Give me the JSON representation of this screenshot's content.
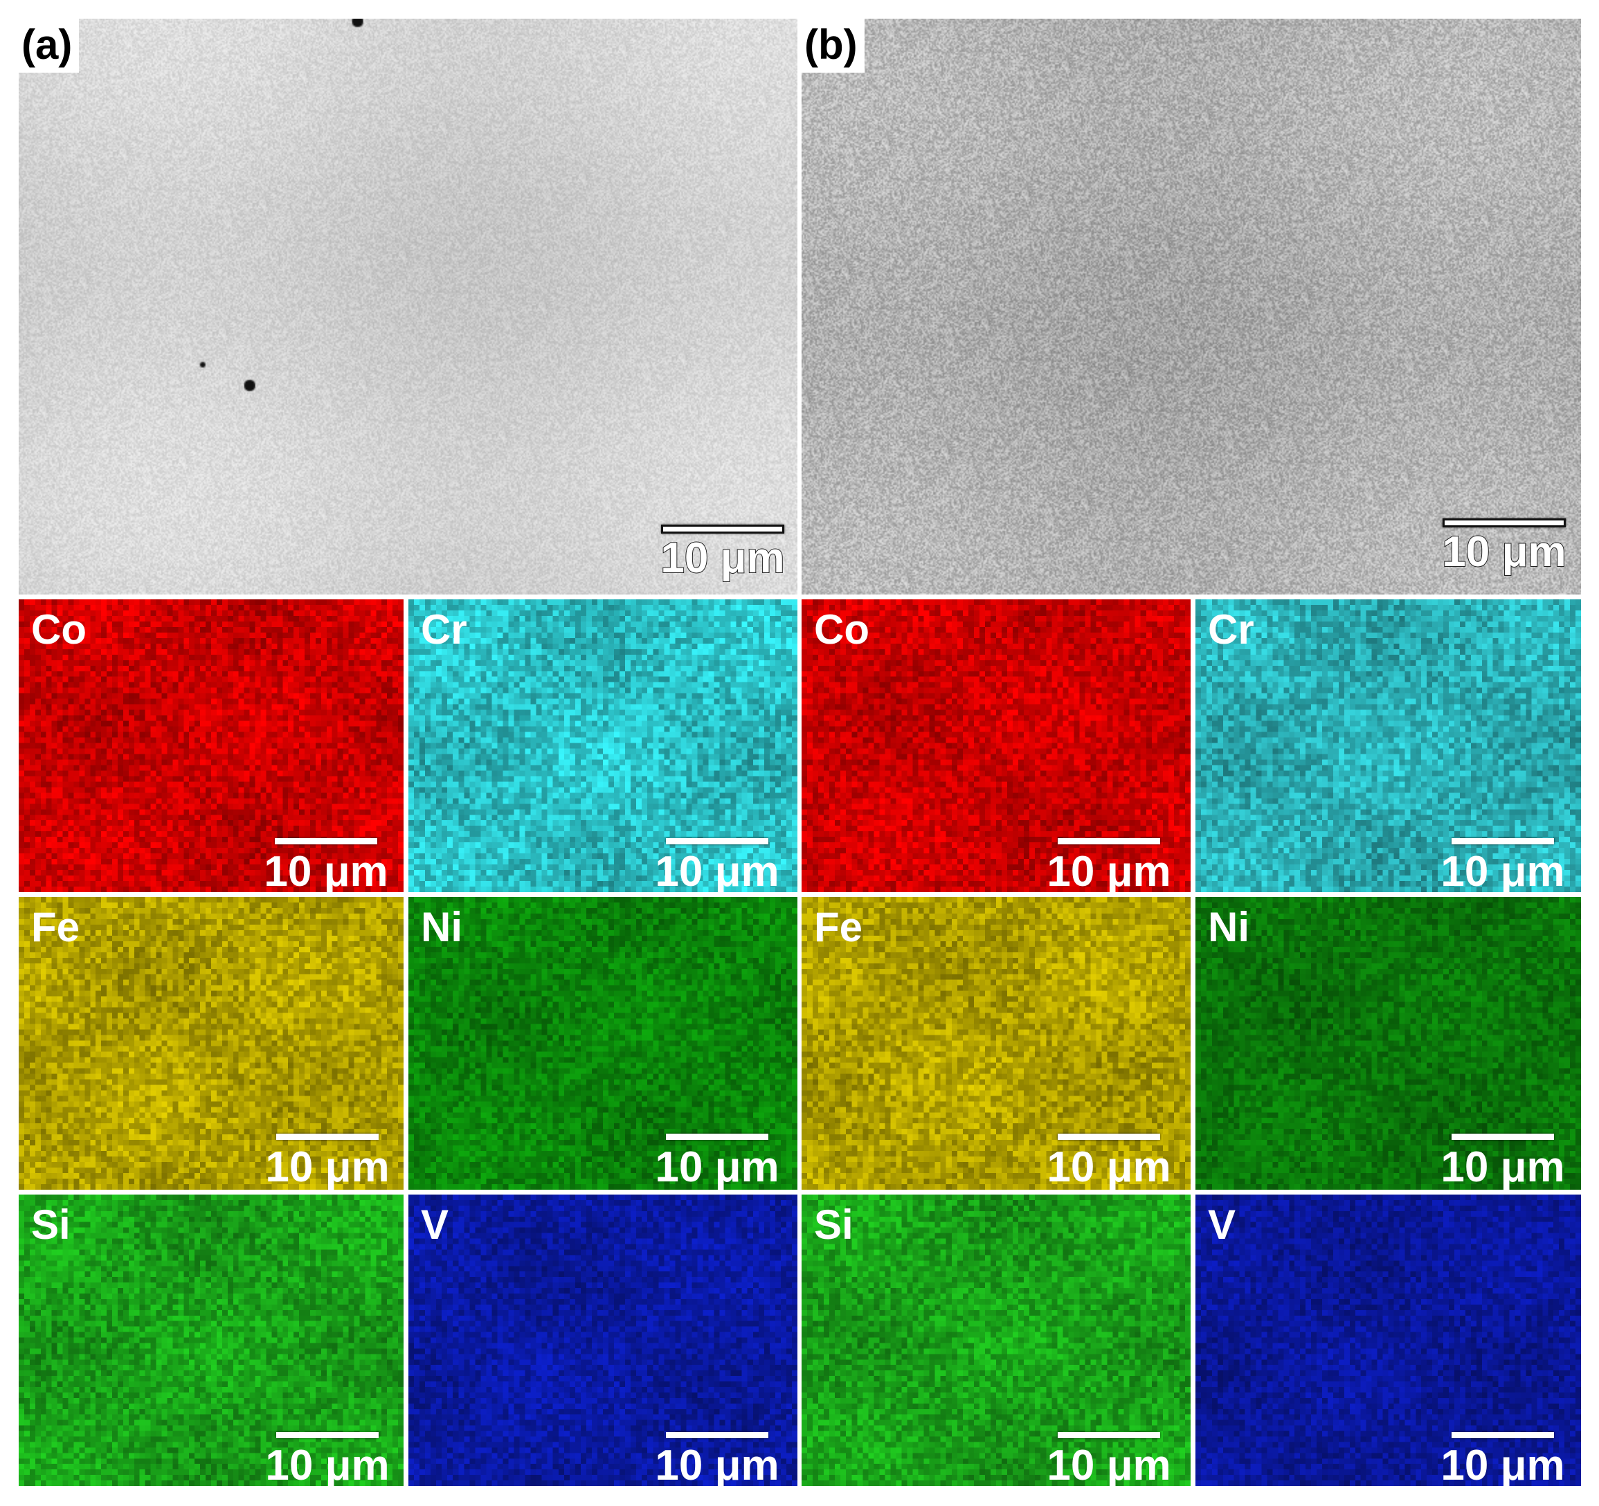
{
  "sem_panels": [
    {
      "id": "a",
      "letter": "(a)",
      "scale_label": "10 μm",
      "tone": "#d2d2d2",
      "noise": 36,
      "dots": true
    },
    {
      "id": "b",
      "letter": "(b)",
      "scale_label": "10 μm",
      "tone": "#b0b0b0",
      "noise": 70,
      "dots": false
    }
  ],
  "maps": [
    {
      "group": "a",
      "element": "Co",
      "color": "#d40000",
      "scale_label": "10 μm"
    },
    {
      "group": "a",
      "element": "Cr",
      "color": "#2ec9cf",
      "scale_label": "10 μm"
    },
    {
      "group": "a",
      "element": "Fe",
      "color": "#b9a800",
      "scale_label": "10 μm"
    },
    {
      "group": "a",
      "element": "Ni",
      "color": "#0b8a0b",
      "scale_label": "10 μm"
    },
    {
      "group": "a",
      "element": "Si",
      "color": "#1aa81a",
      "scale_label": "10 μm"
    },
    {
      "group": "a",
      "element": "V",
      "color": "#0a1aa8",
      "scale_label": "10 μm"
    },
    {
      "group": "b",
      "element": "Co",
      "color": "#d40000",
      "scale_label": "10 μm"
    },
    {
      "group": "b",
      "element": "Cr",
      "color": "#2eb8bf",
      "scale_label": "10 μm"
    },
    {
      "group": "b",
      "element": "Fe",
      "color": "#b9a800",
      "scale_label": "10 μm"
    },
    {
      "group": "b",
      "element": "Ni",
      "color": "#0b7a0b",
      "scale_label": "10 μm"
    },
    {
      "group": "b",
      "element": "Si",
      "color": "#1aa81a",
      "scale_label": "10 μm"
    },
    {
      "group": "b",
      "element": "V",
      "color": "#0a18a0",
      "scale_label": "10 μm"
    }
  ]
}
